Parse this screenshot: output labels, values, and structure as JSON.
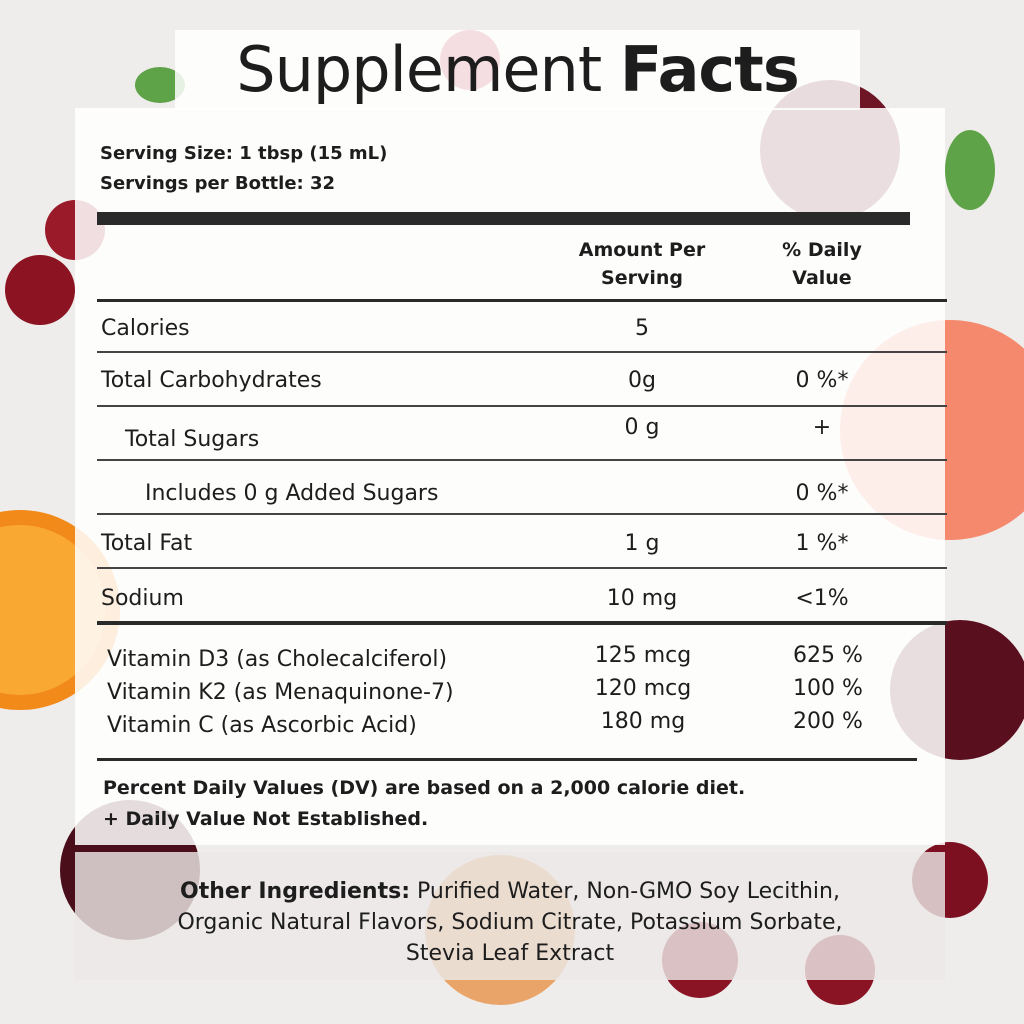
{
  "title": {
    "light": "Supplement",
    "bold": "Facts"
  },
  "serving": {
    "size": "Serving Size: 1 tbsp (15 mL)",
    "per_container": "Servings per Bottle: 32"
  },
  "header": {
    "amount": "Amount Per Serving",
    "daily_value": "% Daily Value"
  },
  "rows": [
    {
      "name": "Calories",
      "amount": "5"
    },
    {
      "name": "Total Carbohydrates",
      "amount": "0g",
      "dv": "0 %*"
    },
    {
      "name": "Total Sugars",
      "amount": "0 g",
      "dv": "+"
    },
    {
      "name": "Includes 0 g Added Sugars",
      "dv": "0 %*"
    },
    {
      "name": "Total Fat",
      "amount": "1 g",
      "dv": "1 %*"
    },
    {
      "name": "Sodium",
      "amount": "10 mg",
      "dv": "<1%"
    }
  ],
  "vitamins": [
    {
      "name": "Vitamin D3 (as Cholecalciferol)",
      "amount": "125 mcg",
      "dv": "625 %"
    },
    {
      "name": "Vitamin K2 (as Menaquinone-7)",
      "amount": "120 mcg",
      "dv": "100 %"
    },
    {
      "name": "Vitamin C (as Ascorbic Acid)",
      "amount": "180 mg",
      "dv": "200 %"
    }
  ],
  "footnotes": [
    "Percent Daily Values (DV) are based on a 2,000 calorie diet.",
    "+ Daily Value Not Established."
  ],
  "ingredients": {
    "label": "Other Ingredients:",
    "text": "Purified Water, Non-GMO Soy Lecithin, Organic Natural Flavors, Sodium Citrate, Potassium Sorbate, Stevia Leaf Extract"
  }
}
